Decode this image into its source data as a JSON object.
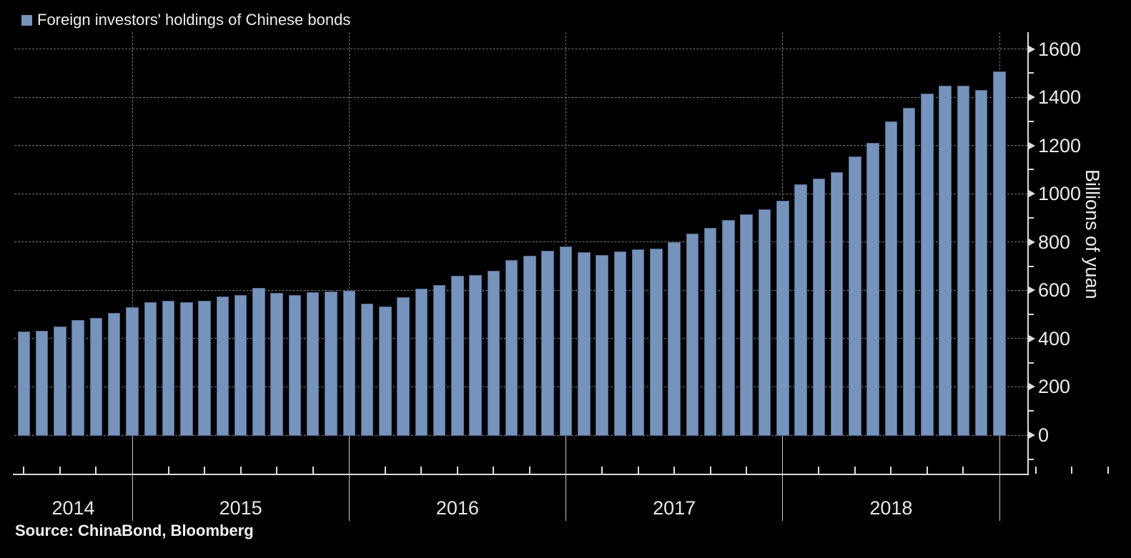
{
  "legend": {
    "label": "Foreign investors' holdings of Chinese bonds",
    "swatch_color": "#7593bb"
  },
  "source": {
    "label": "Source: ChinaBond, Bloomberg"
  },
  "y_axis": {
    "title": "Billions of yuan",
    "tick_labels": [
      "0",
      "200",
      "400",
      "600",
      "800",
      "1000",
      "1200",
      "1400",
      "1600"
    ],
    "major_step": 200,
    "minor_step": 100,
    "min": 0,
    "max": 1600
  },
  "x_axis": {
    "year_labels": [
      "2014",
      "2015",
      "2016",
      "2017",
      "2018"
    ]
  },
  "colors": {
    "background": "#000000",
    "bar_fill": "#7593bb",
    "grid": "#757575",
    "axis": "#dcdcdc",
    "text": "#eeeeee"
  },
  "chart_data": {
    "type": "bar",
    "title": "Foreign investors' holdings of Chinese bonds",
    "xlabel": "",
    "ylabel": "Billions of yuan",
    "ylim": [
      0,
      1600
    ],
    "grid": "dashed",
    "legend_position": "top-left",
    "x_monthly": [
      "2014-07",
      "2014-08",
      "2014-09",
      "2014-10",
      "2014-11",
      "2014-12",
      "2015-01",
      "2015-02",
      "2015-03",
      "2015-04",
      "2015-05",
      "2015-06",
      "2015-07",
      "2015-08",
      "2015-09",
      "2015-10",
      "2015-11",
      "2015-12",
      "2016-01",
      "2016-02",
      "2016-03",
      "2016-04",
      "2016-05",
      "2016-06",
      "2016-07",
      "2016-08",
      "2016-09",
      "2016-10",
      "2016-11",
      "2016-12",
      "2017-01",
      "2017-02",
      "2017-03",
      "2017-04",
      "2017-05",
      "2017-06",
      "2017-07",
      "2017-08",
      "2017-09",
      "2017-10",
      "2017-11",
      "2017-12",
      "2018-01",
      "2018-02",
      "2018-03",
      "2018-04",
      "2018-05",
      "2018-06",
      "2018-07",
      "2018-08",
      "2018-09",
      "2018-10",
      "2018-11",
      "2018-12",
      "2019-01"
    ],
    "values": [
      430,
      433,
      450,
      478,
      486,
      505,
      530,
      552,
      558,
      551,
      558,
      573,
      580,
      610,
      588,
      581,
      592,
      594,
      597,
      545,
      532,
      572,
      608,
      622,
      660,
      662,
      681,
      726,
      744,
      763,
      781,
      757,
      745,
      761,
      770,
      772,
      800,
      836,
      858,
      890,
      916,
      934,
      972,
      1040,
      1064,
      1090,
      1156,
      1210,
      1300,
      1356,
      1416,
      1448,
      1448,
      1430,
      1507
    ]
  }
}
